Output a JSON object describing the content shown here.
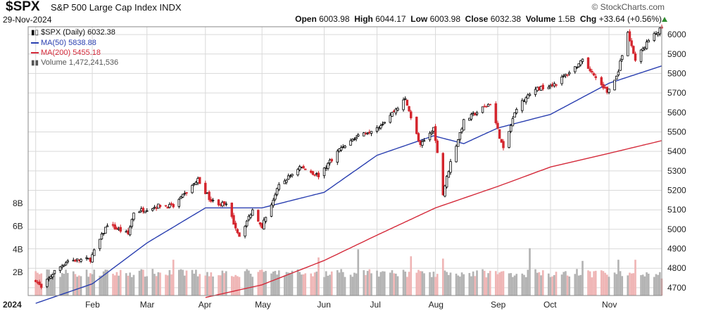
{
  "header": {
    "symbol": "$SPX",
    "name": "S&P 500 Large Cap Index",
    "exchange": "INDX",
    "date": "29-Nov-2024",
    "open_label": "Open",
    "open": "6003.98",
    "high_label": "High",
    "high": "6044.17",
    "low_label": "Low",
    "low": "6003.98",
    "close_label": "Close",
    "close": "6032.38",
    "volume_label": "Volume",
    "volume": "1.5B",
    "chg_label": "Chg",
    "chg": "+33.64 (+0.56%)",
    "brand": "© StockCharts.com",
    "up_color": "#2e8b2e"
  },
  "legend": {
    "price": "$SPX (Daily) 6032.38",
    "ma50": "MA(50) 5838.88",
    "ma200": "MA(200) 5455.18",
    "volume": "Volume 1,472,241,536"
  },
  "colors": {
    "ma50": "#2a3fb0",
    "ma200": "#d42a3a",
    "up_candle": "#000000",
    "down_candle": "#d4262e",
    "volume_up": "#b3b3b3",
    "volume_down": "#efb5b5",
    "grid": "#d9d9d9"
  },
  "chart_data": {
    "type": "candlestick",
    "x_tick_labels": [
      "2024",
      "Feb",
      "Mar",
      "Apr",
      "May",
      "Jun",
      "Jul",
      "Aug",
      "Sep",
      "Oct",
      "Nov"
    ],
    "x_tick_dates": [
      "2024-01-02",
      "2024-02-01",
      "2024-03-01",
      "2024-04-01",
      "2024-05-01",
      "2024-06-03",
      "2024-07-01",
      "2024-08-01",
      "2024-09-03",
      "2024-10-01",
      "2024-11-01"
    ],
    "x_range": [
      "2023-12-29",
      "2024-11-29"
    ],
    "y_ticks": [
      4700,
      4800,
      4900,
      5000,
      5100,
      5200,
      5300,
      5400,
      5500,
      5600,
      5700,
      5800,
      5900,
      6000
    ],
    "ylim": [
      4660,
      6040
    ],
    "volume_ticks": [
      "2B",
      "4B",
      "6B",
      "8B"
    ],
    "volume_tick_values": [
      2,
      4,
      6,
      8
    ],
    "volume_ylim": [
      0,
      9.5
    ],
    "price_anchors": [
      [
        "2024-01-02",
        4742
      ],
      [
        "2024-01-05",
        4697
      ],
      [
        "2024-01-12",
        4784
      ],
      [
        "2024-01-19",
        4839
      ],
      [
        "2024-01-31",
        4846
      ],
      [
        "2024-02-09",
        5026
      ],
      [
        "2024-02-20",
        4975
      ],
      [
        "2024-02-23",
        5088
      ],
      [
        "2024-03-08",
        5123
      ],
      [
        "2024-03-15",
        5117
      ],
      [
        "2024-03-28",
        5254
      ],
      [
        "2024-04-04",
        5147
      ],
      [
        "2024-04-12",
        5123
      ],
      [
        "2024-04-19",
        4967
      ],
      [
        "2024-04-26",
        5099
      ],
      [
        "2024-05-01",
        5018
      ],
      [
        "2024-05-10",
        5222
      ],
      [
        "2024-05-21",
        5321
      ],
      [
        "2024-05-31",
        5277
      ],
      [
        "2024-06-12",
        5421
      ],
      [
        "2024-06-20",
        5473
      ],
      [
        "2024-07-03",
        5537
      ],
      [
        "2024-07-16",
        5667
      ],
      [
        "2024-07-24",
        5427
      ],
      [
        "2024-07-31",
        5522
      ],
      [
        "2024-08-05",
        5186
      ],
      [
        "2024-08-09",
        5344
      ],
      [
        "2024-08-16",
        5554
      ],
      [
        "2024-08-30",
        5648
      ],
      [
        "2024-09-06",
        5408
      ],
      [
        "2024-09-13",
        5626
      ],
      [
        "2024-09-23",
        5718
      ],
      [
        "2024-10-04",
        5751
      ],
      [
        "2024-10-18",
        5864
      ],
      [
        "2024-10-31",
        5705
      ],
      [
        "2024-11-05",
        5782
      ],
      [
        "2024-11-11",
        6001
      ],
      [
        "2024-11-15",
        5870
      ],
      [
        "2024-11-22",
        5969
      ],
      [
        "2024-11-29",
        6032
      ]
    ],
    "ma50_anchors": [
      [
        "2024-01-02",
        4620
      ],
      [
        "2024-02-01",
        4720
      ],
      [
        "2024-03-01",
        4930
      ],
      [
        "2024-04-01",
        5110
      ],
      [
        "2024-05-01",
        5110
      ],
      [
        "2024-06-03",
        5190
      ],
      [
        "2024-07-01",
        5380
      ],
      [
        "2024-07-31",
        5480
      ],
      [
        "2024-08-16",
        5440
      ],
      [
        "2024-09-03",
        5520
      ],
      [
        "2024-10-01",
        5590
      ],
      [
        "2024-11-01",
        5750
      ],
      [
        "2024-11-29",
        5838.88
      ]
    ],
    "ma200_anchors": [
      [
        "2024-04-01",
        4650
      ],
      [
        "2024-05-01",
        4715
      ],
      [
        "2024-06-03",
        4840
      ],
      [
        "2024-07-01",
        4970
      ],
      [
        "2024-08-01",
        5110
      ],
      [
        "2024-09-03",
        5220
      ],
      [
        "2024-10-01",
        5320
      ],
      [
        "2024-11-01",
        5390
      ],
      [
        "2024-11-29",
        5455.18
      ]
    ],
    "volume_billions_typical": 2.1,
    "volume_spikes": [
      [
        "2024-03-15",
        3.1
      ],
      [
        "2024-05-31",
        3.3
      ],
      [
        "2024-06-21",
        4.0
      ],
      [
        "2024-07-19",
        3.4
      ],
      [
        "2024-08-05",
        3.2
      ],
      [
        "2024-09-20",
        4.1
      ],
      [
        "2024-10-18",
        3.0
      ],
      [
        "2024-11-06",
        3.1
      ],
      [
        "2024-11-15",
        3.1
      ]
    ],
    "last_close": 6032.38,
    "last_volume": 1472241536
  }
}
